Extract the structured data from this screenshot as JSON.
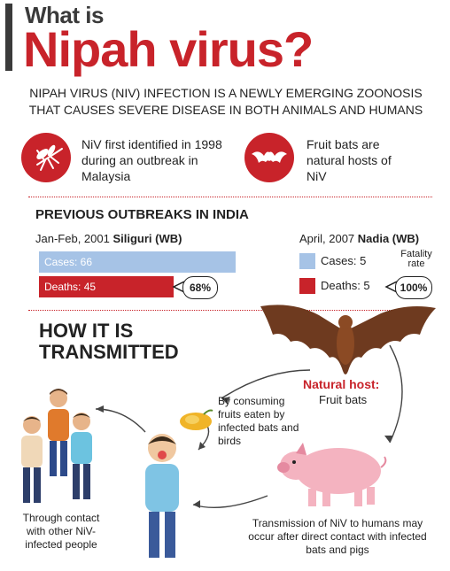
{
  "header": {
    "title_line1": "What is",
    "title_line2": "Nipah virus?"
  },
  "intro": "NIPAH VIRUS (NIV) INFECTION IS A NEWLY EMERGING ZOONOSIS THAT CAUSES SEVERE DISEASE IN BOTH ANIMALS AND HUMANS",
  "facts": [
    {
      "icon": "mosquito-icon",
      "text": "NiV first identified in 1998 during an outbreak in Malaysia"
    },
    {
      "icon": "bat-icon",
      "text": "Fruit bats are natural hosts of NiV"
    }
  ],
  "outbreaks": {
    "heading": "PREVIOUS OUTBREAKS IN INDIA",
    "left": {
      "date": "Jan-Feb, 2001",
      "place": "Siliguri (WB)",
      "cases_label": "Cases: 66",
      "cases": 66,
      "deaths_label": "Deaths: 45",
      "deaths": 45,
      "fatality": "68%"
    },
    "right": {
      "date": "April, 2007",
      "place": "Nadia (WB)",
      "cases_label": "Cases: 5",
      "cases": 5,
      "deaths_label": "Deaths: 5",
      "deaths": 5,
      "fatality_label": "Fatality rate",
      "fatality": "100%"
    }
  },
  "transmission": {
    "heading_line1": "HOW IT IS",
    "heading_line2": "TRANSMITTED",
    "host_label": "Natural host:",
    "host_sub": "Fruit bats",
    "fruits": "By consuming fruits eaten by infected bats and birds",
    "contact": "Through contact with other NiV-infected people",
    "pigs": "Transmission of NiV to humans may occur after direct contact with infected bats and pigs"
  },
  "colors": {
    "red": "#c8232a",
    "blue": "#a6c3e6",
    "dark": "#3a3a3a"
  }
}
